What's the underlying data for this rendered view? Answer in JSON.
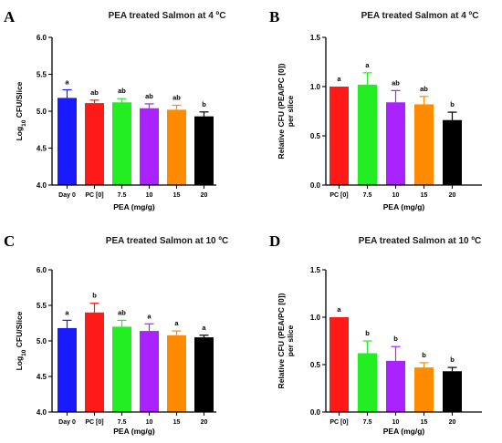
{
  "chart_data": [
    {
      "panel": "A",
      "type": "bar",
      "title": "PEA treated Salmon at 4 ºC",
      "xlabel": "PEA (mg/g)",
      "ylabel_main": "Log",
      "ylabel_sub": "10",
      "ylabel_rest": " CFU/Slice",
      "categories": [
        "Day 0",
        "PC [0]",
        "7.5",
        "10",
        "15",
        "20"
      ],
      "values": [
        5.18,
        5.11,
        5.12,
        5.04,
        5.02,
        4.93
      ],
      "errors": [
        0.11,
        0.04,
        0.05,
        0.06,
        0.06,
        0.06
      ],
      "significance": [
        "a",
        "ab",
        "ab",
        "ab",
        "ab",
        "b"
      ],
      "ylim": [
        4.0,
        6.0
      ],
      "yticks": [
        "4.0",
        "4.5",
        "5.0",
        "5.5",
        "6.0"
      ],
      "ytick_values": [
        4.0,
        4.5,
        5.0,
        5.5,
        6.0
      ],
      "colors": [
        "#1a1aff",
        "#ff1a1a",
        "#22ee22",
        "#aa22ff",
        "#ff8c00",
        "#000000"
      ]
    },
    {
      "panel": "B",
      "type": "bar",
      "title": "PEA treated Salmon at 4 ºC",
      "xlabel": "PEA (mg/g)",
      "ylabel_main": "Relative CFU (PEA/PC [0])",
      "ylabel_second": "per slice",
      "categories": [
        "PC [0]",
        "7.5",
        "10",
        "15",
        "20"
      ],
      "values": [
        1.0,
        1.02,
        0.84,
        0.82,
        0.66
      ],
      "errors": [
        0.0,
        0.12,
        0.12,
        0.08,
        0.08
      ],
      "significance": [
        "a",
        "a",
        "ab",
        "ab",
        "b"
      ],
      "ylim": [
        0.0,
        1.5
      ],
      "yticks": [
        "0.0",
        "0.5",
        "1.0",
        "1.5"
      ],
      "ytick_values": [
        0.0,
        0.5,
        1.0,
        1.5
      ],
      "colors": [
        "#ff1a1a",
        "#22ee22",
        "#aa22ff",
        "#ff8c00",
        "#000000"
      ]
    },
    {
      "panel": "C",
      "type": "bar",
      "title": "PEA treated Salmon at 10 ºC",
      "xlabel": "PEA (mg/g)",
      "ylabel_main": "Log",
      "ylabel_sub": "10",
      "ylabel_rest": " CFU/Slice",
      "categories": [
        "Day 0",
        "PC [0]",
        "7.5",
        "10",
        "15",
        "20"
      ],
      "values": [
        5.18,
        5.4,
        5.2,
        5.14,
        5.08,
        5.05
      ],
      "errors": [
        0.11,
        0.13,
        0.09,
        0.1,
        0.06,
        0.03
      ],
      "significance": [
        "a",
        "b",
        "ab",
        "a",
        "a",
        "a"
      ],
      "ylim": [
        4.0,
        6.0
      ],
      "yticks": [
        "4.0",
        "4.5",
        "5.0",
        "5.5",
        "6.0"
      ],
      "ytick_values": [
        4.0,
        4.5,
        5.0,
        5.5,
        6.0
      ],
      "colors": [
        "#1a1aff",
        "#ff1a1a",
        "#22ee22",
        "#aa22ff",
        "#ff8c00",
        "#000000"
      ]
    },
    {
      "panel": "D",
      "type": "bar",
      "title": "PEA treated Salmon at 10 ºC",
      "xlabel": "PEA (mg/g)",
      "ylabel_main": "Relative CFU (PEA/PC [0])",
      "ylabel_second": "per slice",
      "categories": [
        "PC [0]",
        "7.5",
        "10",
        "15",
        "20"
      ],
      "values": [
        1.0,
        0.62,
        0.54,
        0.47,
        0.43
      ],
      "errors": [
        0.0,
        0.13,
        0.15,
        0.05,
        0.04
      ],
      "significance": [
        "a",
        "b",
        "b",
        "b",
        "b"
      ],
      "ylim": [
        0.0,
        1.5
      ],
      "yticks": [
        "0.0",
        "0.5",
        "1.0",
        "1.5"
      ],
      "ytick_values": [
        0.0,
        0.5,
        1.0,
        1.5
      ],
      "colors": [
        "#ff1a1a",
        "#22ee22",
        "#aa22ff",
        "#ff8c00",
        "#000000"
      ]
    }
  ]
}
